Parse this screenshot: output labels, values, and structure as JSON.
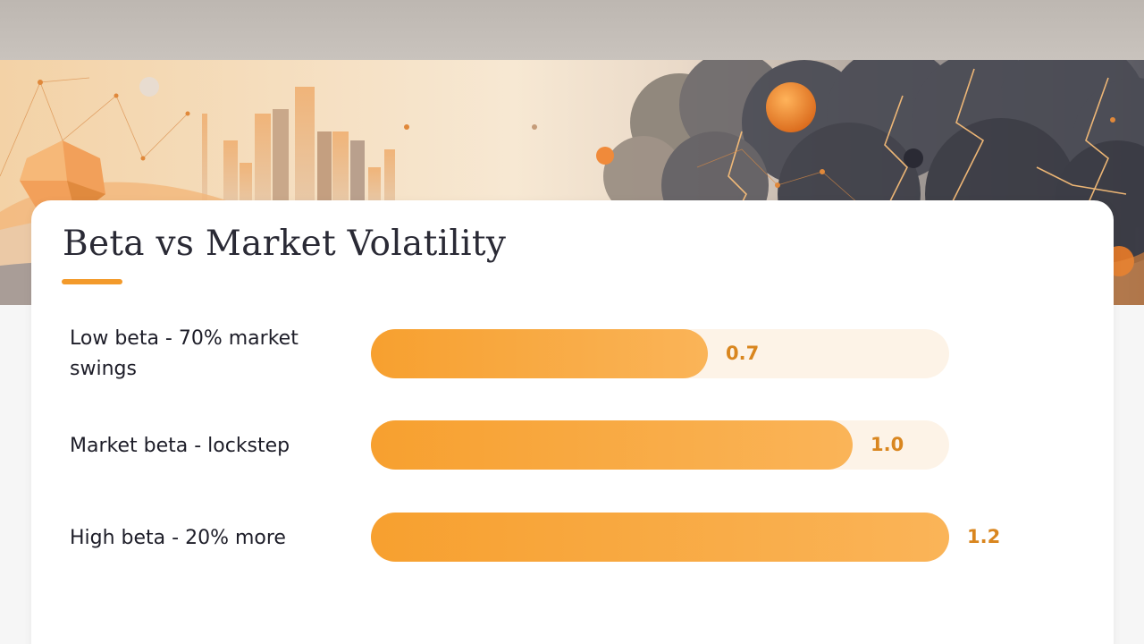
{
  "chart_data": {
    "type": "bar",
    "orientation": "horizontal",
    "title": "Beta vs Market Volatility",
    "categories": [
      "Low beta - 70% market swings",
      "Market beta - lockstep",
      "High beta - 20% more"
    ],
    "values": [
      0.7,
      1.0,
      1.2
    ],
    "value_labels": [
      "0.7",
      "1.0",
      "1.2"
    ],
    "xlim": [
      0,
      1.2
    ],
    "grid": false,
    "legend": "none"
  },
  "colors": {
    "accent": "#f39a2b",
    "bar_start": "#f7a02f",
    "bar_end": "#fab458",
    "track": "#fdf3e7",
    "value_text": "#d9861f",
    "title_text": "#2a2a35"
  }
}
